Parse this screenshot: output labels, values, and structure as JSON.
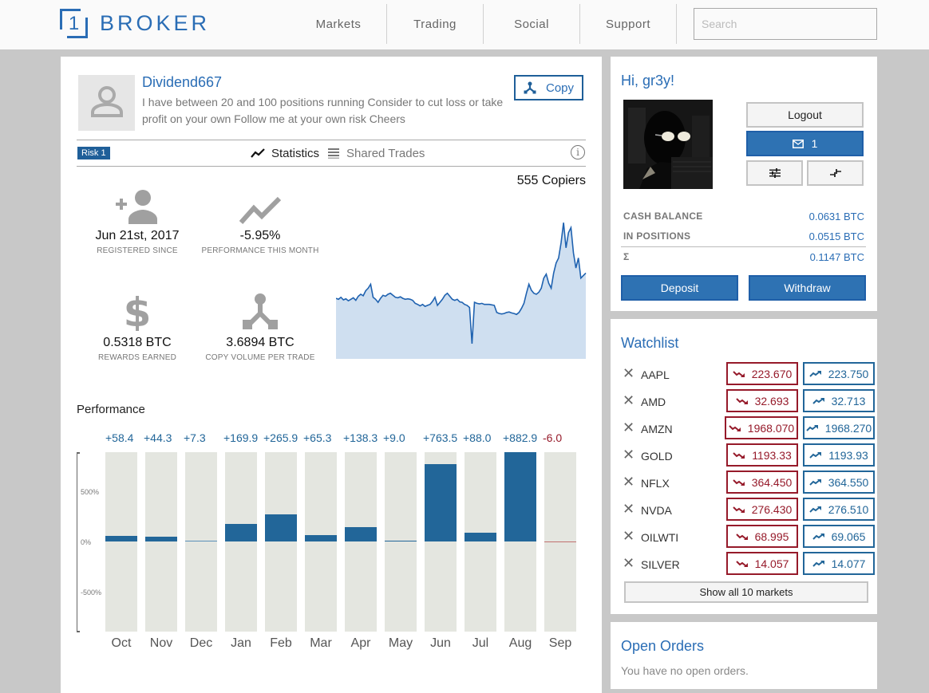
{
  "header": {
    "logo_number": "1",
    "logo_text": "BROKER",
    "nav": [
      {
        "label": "Markets"
      },
      {
        "label": "Trading"
      },
      {
        "label": "Social"
      },
      {
        "label": "Support"
      }
    ],
    "search_placeholder": "Search",
    "search_value": ""
  },
  "trader": {
    "name": "Dividend667",
    "bio": "I have between 20 and 100 positions running Consider to cut loss or take profit on your own Follow me at your own risk Cheers",
    "copy_label": "Copy",
    "risk_badge": "Risk 1",
    "tabs": [
      {
        "label": "Statistics",
        "icon": "trend-line-icon",
        "active": true
      },
      {
        "label": "Shared Trades",
        "icon": "list-icon",
        "active": false
      }
    ],
    "info_icon": "info-icon",
    "stats": [
      {
        "icon": "person-add-icon",
        "value": "Jun 21st, 2017",
        "label": "REGISTERED SINCE"
      },
      {
        "icon": "trend-icon",
        "value": "-5.95%",
        "label": "PERFORMANCE THIS MONTH"
      },
      {
        "icon": "dollar-icon",
        "value": "0.5318 BTC",
        "label": "REWARDS EARNED"
      },
      {
        "icon": "copy-fork-icon",
        "value": "3.6894 BTC",
        "label": "COPY VOLUME PER TRADE"
      }
    ],
    "copiers": "555 Copiers"
  },
  "performance": {
    "title": "Performance",
    "y_ticks": [
      "500%",
      "0%",
      "-500%"
    ]
  },
  "chart_data": [
    {
      "type": "bar",
      "title": "Performance",
      "categories": [
        "Oct",
        "Nov",
        "Dec",
        "Jan",
        "Feb",
        "Mar",
        "Apr",
        "May",
        "Jun",
        "Jul",
        "Aug",
        "Sep"
      ],
      "values": [
        58.4,
        44.3,
        7.3,
        169.9,
        265.9,
        65.3,
        138.3,
        9.0,
        763.5,
        88.0,
        882.9,
        -6.0
      ],
      "labels": [
        "+58.4",
        "+44.3",
        "+7.3",
        "+169.9",
        "+265.9",
        "+65.3",
        "+138.3",
        "+9.0",
        "+763.5",
        "+88.0",
        "+882.9",
        "-6.0"
      ],
      "xlabel": "",
      "ylabel": "",
      "yticks": [
        "500%",
        "0%",
        "-500%"
      ],
      "ylim": [
        -880,
        880
      ],
      "positive_color": "#226699",
      "negative_color": "#961a2a",
      "background_color": "#e4e6e0"
    },
    {
      "type": "area",
      "title": "Copiers",
      "annotation": "555 Copiers",
      "values": [
        120,
        118,
        122,
        117,
        119,
        115,
        118,
        121,
        116,
        124,
        128,
        125,
        135,
        140,
        148,
        122,
        118,
        112,
        120,
        126,
        124,
        128,
        130,
        126,
        122,
        121,
        123,
        120,
        118,
        119,
        118,
        116,
        110,
        108,
        105,
        108,
        104,
        106,
        108,
        114,
        122,
        106,
        112,
        118,
        126,
        130,
        124,
        118,
        116,
        118,
        113,
        112,
        108,
        106,
        102,
        30,
        112,
        110,
        109,
        110,
        108,
        108,
        108,
        107,
        106,
        92,
        90,
        89,
        90,
        92,
        93,
        91,
        90,
        88,
        92,
        100,
        110,
        130,
        148,
        136,
        130,
        128,
        132,
        140,
        160,
        168,
        150,
        140,
        170,
        190,
        200,
        230,
        270,
        220,
        250,
        260,
        210,
        180,
        200,
        160,
        165,
        170
      ]
    }
  ],
  "account": {
    "greeting": "Hi, gr3y!",
    "logout_label": "Logout",
    "messages_count": "1",
    "settings_icon": "sliders-icon",
    "compact_icon": "compress-icon",
    "balances": [
      {
        "label": "CASH BALANCE",
        "value": "0.0631 BTC"
      },
      {
        "label": "IN POSITIONS",
        "value": "0.0515 BTC"
      },
      {
        "label": "Σ",
        "value": "0.1147 BTC"
      }
    ],
    "deposit_label": "Deposit",
    "withdraw_label": "Withdraw"
  },
  "watchlist": {
    "title": "Watchlist",
    "items": [
      {
        "symbol": "AAPL",
        "sell": "223.670",
        "buy": "223.750"
      },
      {
        "symbol": "AMD",
        "sell": "32.693",
        "buy": "32.713"
      },
      {
        "symbol": "AMZN",
        "sell": "1968.070",
        "buy": "1968.270"
      },
      {
        "symbol": "GOLD",
        "sell": "1193.33",
        "buy": "1193.93"
      },
      {
        "symbol": "NFLX",
        "sell": "364.450",
        "buy": "364.550"
      },
      {
        "symbol": "NVDA",
        "sell": "276.430",
        "buy": "276.510"
      },
      {
        "symbol": "OILWTI",
        "sell": "68.995",
        "buy": "69.065"
      },
      {
        "symbol": "SILVER",
        "sell": "14.057",
        "buy": "14.077"
      }
    ],
    "show_all_label": "Show all 10 markets"
  },
  "orders": {
    "title": "Open Orders",
    "empty_text": "You have no open orders."
  },
  "colors": {
    "brand_blue": "#2a6db5",
    "sell_red": "#961a2a",
    "buy_blue": "#226699"
  }
}
